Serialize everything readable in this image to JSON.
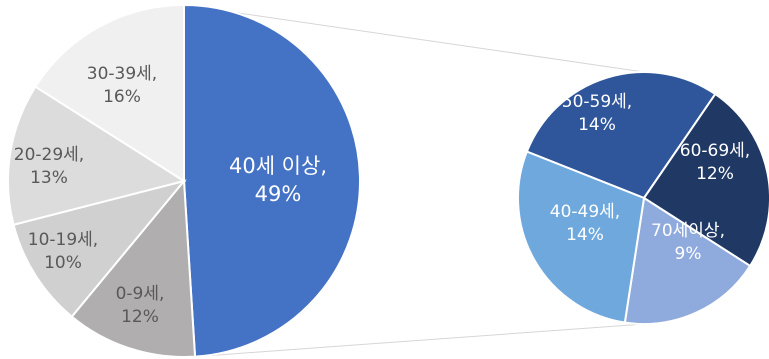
{
  "chart_data": {
    "type": "pie",
    "title": "",
    "main_pie": {
      "slices": [
        {
          "label": "40세 이상,",
          "value_label": "49%",
          "value": 49,
          "color": "#4472c4",
          "text_color": "#ffffff"
        },
        {
          "label": "0-9세,",
          "value_label": "12%",
          "value": 12,
          "color": "#b0aeae",
          "text_color": "#595959"
        },
        {
          "label": "10-19세,",
          "value_label": "10%",
          "value": 10,
          "color": "#d0d0d0",
          "text_color": "#595959"
        },
        {
          "label": "20-29세,",
          "value_label": "13%",
          "value": 13,
          "color": "#dcdcdc",
          "text_color": "#595959"
        },
        {
          "label": "30-39세,",
          "value_label": "16%",
          "value": 16,
          "color": "#f0f0f0",
          "text_color": "#595959"
        }
      ]
    },
    "detail_pie": {
      "slices": [
        {
          "label": "50-59세,",
          "value_label": "14%",
          "value": 14,
          "color": "#2f559a",
          "text_color": "#ffffff"
        },
        {
          "label": "60-69세,",
          "value_label": "12%",
          "value": 12,
          "color": "#203864",
          "text_color": "#ffffff"
        },
        {
          "label": "70세이상,",
          "value_label": "9%",
          "value": 9,
          "color": "#8faadc",
          "text_color": "#ffffff"
        },
        {
          "label": "40-49세,",
          "value_label": "14%",
          "value": 14,
          "color": "#6fa8dc",
          "text_color": "#ffffff"
        }
      ]
    }
  }
}
